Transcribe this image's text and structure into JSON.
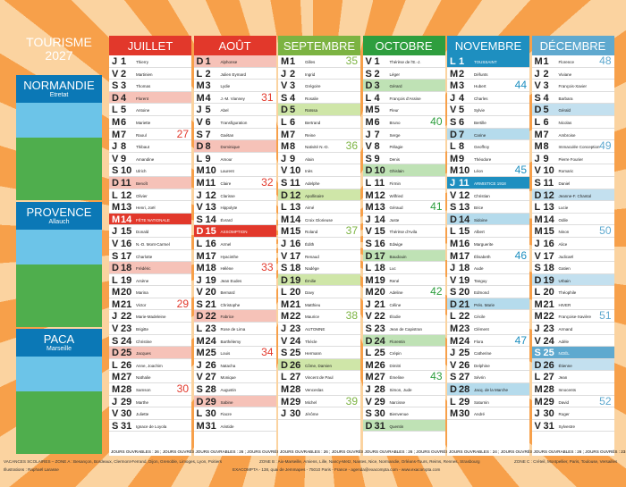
{
  "header": {
    "title": "TOURISME",
    "year": "2027"
  },
  "panels": [
    {
      "title": "NORMANDIE",
      "place": "Etretat"
    },
    {
      "title": "PROVENCE",
      "place": "Allauch"
    },
    {
      "title": "PACA",
      "place": "Marseille"
    }
  ],
  "months": [
    {
      "name": "JUILLET",
      "color": "#e2382b",
      "light": "#f6c2b8",
      "holidays": [
        14
      ],
      "days": [
        [
          "J",
          1,
          "Thierry"
        ],
        [
          "V",
          2,
          "Martinien"
        ],
        [
          "S",
          3,
          "Thomas"
        ],
        [
          "D",
          4,
          "Florent"
        ],
        [
          "L",
          5,
          "Antoine"
        ],
        [
          "M",
          6,
          "Mariette"
        ],
        [
          "M",
          7,
          "Raoul"
        ],
        [
          "J",
          8,
          "Thibaut"
        ],
        [
          "V",
          9,
          "Amandine"
        ],
        [
          "S",
          10,
          "Ulrich"
        ],
        [
          "D",
          11,
          "Benoît"
        ],
        [
          "L",
          12,
          "Olivier"
        ],
        [
          "M",
          13,
          "Henri, Joël"
        ],
        [
          "M",
          14,
          "FÊTE NATIONALE"
        ],
        [
          "J",
          15,
          "Donald"
        ],
        [
          "V",
          16,
          "N.-D. Mont-Carmel"
        ],
        [
          "S",
          17,
          "Charlotte"
        ],
        [
          "D",
          18,
          "Frédéric"
        ],
        [
          "L",
          19,
          "Arsène"
        ],
        [
          "M",
          20,
          "Marina"
        ],
        [
          "M",
          21,
          "Victor"
        ],
        [
          "J",
          22,
          "Marie-Madeleine"
        ],
        [
          "V",
          23,
          "Brigitte"
        ],
        [
          "S",
          24,
          "Christine"
        ],
        [
          "D",
          25,
          "Jacques"
        ],
        [
          "L",
          26,
          "Anne, Joachim"
        ],
        [
          "M",
          27,
          "Nathalie"
        ],
        [
          "M",
          28,
          "Samson"
        ],
        [
          "J",
          29,
          "Marthe"
        ],
        [
          "V",
          30,
          "Juliette"
        ],
        [
          "S",
          31,
          "Ignace de Loyola"
        ]
      ],
      "weeks": [
        {
          "day": 7,
          "num": 27
        },
        {
          "day": 14,
          "num": 28
        },
        {
          "day": 21,
          "num": 29
        },
        {
          "day": 28,
          "num": 30
        }
      ],
      "footer": "JOURS OUVRABLES : 26 ; JOURS OUVRÉS : 21"
    },
    {
      "name": "AOÛT",
      "color": "#e2382b",
      "light": "#f6c2b8",
      "holidays": [
        15
      ],
      "days": [
        [
          "D",
          1,
          "Alphonse"
        ],
        [
          "L",
          2,
          "Julien Eymard"
        ],
        [
          "M",
          3,
          "Lydie"
        ],
        [
          "M",
          4,
          "J.-M. Vianney"
        ],
        [
          "J",
          5,
          "Abel"
        ],
        [
          "V",
          6,
          "Transfiguration"
        ],
        [
          "S",
          7,
          "Gaétan"
        ],
        [
          "D",
          8,
          "Dominique"
        ],
        [
          "L",
          9,
          "Amour"
        ],
        [
          "M",
          10,
          "Laurent"
        ],
        [
          "M",
          11,
          "Claire"
        ],
        [
          "J",
          12,
          "Clarisse"
        ],
        [
          "V",
          13,
          "Hippolyte"
        ],
        [
          "S",
          14,
          "Évrard"
        ],
        [
          "D",
          15,
          "ASSOMPTION"
        ],
        [
          "L",
          16,
          "Armel"
        ],
        [
          "M",
          17,
          "Hyacinthe"
        ],
        [
          "M",
          18,
          "Hélène"
        ],
        [
          "J",
          19,
          "Jean Eudes"
        ],
        [
          "V",
          20,
          "Bernard"
        ],
        [
          "S",
          21,
          "Christophe"
        ],
        [
          "D",
          22,
          "Fabrice"
        ],
        [
          "L",
          23,
          "Rose de Lima"
        ],
        [
          "M",
          24,
          "Barthélemy"
        ],
        [
          "M",
          25,
          "Louis"
        ],
        [
          "J",
          26,
          "Natacha"
        ],
        [
          "V",
          27,
          "Monique"
        ],
        [
          "S",
          28,
          "Augustin"
        ],
        [
          "D",
          29,
          "Sabine"
        ],
        [
          "L",
          30,
          "Fiacre"
        ],
        [
          "M",
          31,
          "Aristide"
        ]
      ],
      "weeks": [
        {
          "day": 4,
          "num": 31
        },
        {
          "day": 11,
          "num": 32
        },
        {
          "day": 18,
          "num": 33
        },
        {
          "day": 25,
          "num": 34
        }
      ],
      "footer": "JOURS OUVRABLES : 26 ; JOURS OUVRÉS : 22"
    },
    {
      "name": "SEPTEMBRE",
      "color": "#7cb342",
      "light": "#cfe6a8",
      "holidays": [],
      "days": [
        [
          "M",
          1,
          "Gilles"
        ],
        [
          "J",
          2,
          "Ingrid"
        ],
        [
          "V",
          3,
          "Grégoire"
        ],
        [
          "S",
          4,
          "Rosalie"
        ],
        [
          "D",
          5,
          "Raïssa"
        ],
        [
          "L",
          6,
          "Bertrand"
        ],
        [
          "M",
          7,
          "Reine"
        ],
        [
          "M",
          8,
          "Nativité N.-D."
        ],
        [
          "J",
          9,
          "Alain"
        ],
        [
          "V",
          10,
          "Inès"
        ],
        [
          "S",
          11,
          "Adelphe"
        ],
        [
          "D",
          12,
          "Apollinaire"
        ],
        [
          "L",
          13,
          "Aimé"
        ],
        [
          "M",
          14,
          "Croix Glorieuse"
        ],
        [
          "M",
          15,
          "Roland"
        ],
        [
          "J",
          16,
          "Édith"
        ],
        [
          "V",
          17,
          "Renaud"
        ],
        [
          "S",
          18,
          "Nadège"
        ],
        [
          "D",
          19,
          "Émilie"
        ],
        [
          "L",
          20,
          "Davy"
        ],
        [
          "M",
          21,
          "Matthieu"
        ],
        [
          "M",
          22,
          "Maurice"
        ],
        [
          "J",
          23,
          "AUTOMNE"
        ],
        [
          "V",
          24,
          "Thècle"
        ],
        [
          "S",
          25,
          "Hermann"
        ],
        [
          "D",
          26,
          "Côme, Damien"
        ],
        [
          "L",
          27,
          "Vincent de Paul"
        ],
        [
          "M",
          28,
          "Venceslas"
        ],
        [
          "M",
          29,
          "Michel"
        ],
        [
          "J",
          30,
          "Jérôme"
        ]
      ],
      "weeks": [
        {
          "day": 1,
          "num": 35
        },
        {
          "day": 8,
          "num": 36
        },
        {
          "day": 15,
          "num": 37
        },
        {
          "day": 22,
          "num": 38
        },
        {
          "day": 29,
          "num": 39
        }
      ],
      "footer": "JOURS OUVRABLES : 26 ; JOURS OUVRÉS : 22"
    },
    {
      "name": "OCTOBRE",
      "color": "#2e9e3e",
      "light": "#bfe2b5",
      "holidays": [],
      "days": [
        [
          "V",
          1,
          "Thérèse de l'E.-J."
        ],
        [
          "S",
          2,
          "Léger"
        ],
        [
          "D",
          3,
          "Gérard"
        ],
        [
          "L",
          4,
          "François d'Assise"
        ],
        [
          "M",
          5,
          "Fleur"
        ],
        [
          "M",
          6,
          "Bruno"
        ],
        [
          "J",
          7,
          "Serge"
        ],
        [
          "V",
          8,
          "Pélagie"
        ],
        [
          "S",
          9,
          "Denis"
        ],
        [
          "D",
          10,
          "Ghislain"
        ],
        [
          "L",
          11,
          "Firmin"
        ],
        [
          "M",
          12,
          "Wilfried"
        ],
        [
          "M",
          13,
          "Géraud"
        ],
        [
          "J",
          14,
          "Juste"
        ],
        [
          "V",
          15,
          "Thérèse d'Avila"
        ],
        [
          "S",
          16,
          "Edwige"
        ],
        [
          "D",
          17,
          "Baudouin"
        ],
        [
          "L",
          18,
          "Luc"
        ],
        [
          "M",
          19,
          "René"
        ],
        [
          "M",
          20,
          "Adeline"
        ],
        [
          "J",
          21,
          "Céline"
        ],
        [
          "V",
          22,
          "Élodie"
        ],
        [
          "S",
          23,
          "Jean de Capistran"
        ],
        [
          "D",
          24,
          "Florentin"
        ],
        [
          "L",
          25,
          "Crépin"
        ],
        [
          "M",
          26,
          "Dimitri"
        ],
        [
          "M",
          27,
          "Émeline"
        ],
        [
          "J",
          28,
          "Simon, Jude"
        ],
        [
          "V",
          29,
          "Narcisse"
        ],
        [
          "S",
          30,
          "Bienvenue"
        ],
        [
          "D",
          31,
          "Quentin"
        ]
      ],
      "weeks": [
        {
          "day": 6,
          "num": 40
        },
        {
          "day": 13,
          "num": 41
        },
        {
          "day": 20,
          "num": 42
        },
        {
          "day": 27,
          "num": 43
        }
      ],
      "footer": "JOURS OUVRABLES : 26 ; JOURS OUVRÉS : 21"
    },
    {
      "name": "NOVEMBRE",
      "color": "#1e8fc0",
      "light": "#b5dbec",
      "holidays": [
        1,
        11
      ],
      "days": [
        [
          "L",
          1,
          "TOUSSAINT"
        ],
        [
          "M",
          2,
          "Défunts"
        ],
        [
          "M",
          3,
          "Hubert"
        ],
        [
          "J",
          4,
          "Charles"
        ],
        [
          "V",
          5,
          "Sylvie"
        ],
        [
          "S",
          6,
          "Bertille"
        ],
        [
          "D",
          7,
          "Carine"
        ],
        [
          "L",
          8,
          "Geoffroy"
        ],
        [
          "M",
          9,
          "Théodore"
        ],
        [
          "M",
          10,
          "Léon"
        ],
        [
          "J",
          11,
          "ARMISTICE 1918"
        ],
        [
          "V",
          12,
          "Christian"
        ],
        [
          "S",
          13,
          "Brice"
        ],
        [
          "D",
          14,
          "Sidoine"
        ],
        [
          "L",
          15,
          "Albert"
        ],
        [
          "M",
          16,
          "Marguerite"
        ],
        [
          "M",
          17,
          "Élisabeth"
        ],
        [
          "J",
          18,
          "Aude"
        ],
        [
          "V",
          19,
          "Tanguy"
        ],
        [
          "S",
          20,
          "Edmond"
        ],
        [
          "D",
          21,
          "Prés. Marie"
        ],
        [
          "L",
          22,
          "Cécile"
        ],
        [
          "M",
          23,
          "Clément"
        ],
        [
          "M",
          24,
          "Flora"
        ],
        [
          "J",
          25,
          "Catherine"
        ],
        [
          "V",
          26,
          "Delphine"
        ],
        [
          "S",
          27,
          "Sévrin"
        ],
        [
          "D",
          28,
          "Jacq. de la Marche"
        ],
        [
          "L",
          29,
          "Saturnin"
        ],
        [
          "M",
          30,
          "André"
        ]
      ],
      "weeks": [
        {
          "day": 3,
          "num": 44
        },
        {
          "day": 10,
          "num": 45
        },
        {
          "day": 17,
          "num": 46
        },
        {
          "day": 24,
          "num": 47
        }
      ],
      "footer": "JOURS OUVRABLES : 24 ; JOURS OUVRÉS : 20"
    },
    {
      "name": "DÉCEMBRE",
      "color": "#5fa9cf",
      "light": "#c3e0ef",
      "holidays": [
        25
      ],
      "days": [
        [
          "M",
          1,
          "Florence"
        ],
        [
          "J",
          2,
          "Viviane"
        ],
        [
          "V",
          3,
          "François-Xavier"
        ],
        [
          "S",
          4,
          "Barbara"
        ],
        [
          "D",
          5,
          "Gérald"
        ],
        [
          "L",
          6,
          "Nicolas"
        ],
        [
          "M",
          7,
          "Ambroise"
        ],
        [
          "M",
          8,
          "Immaculée Conception"
        ],
        [
          "J",
          9,
          "Pierre Fourier"
        ],
        [
          "V",
          10,
          "Romaric"
        ],
        [
          "S",
          11,
          "Daniel"
        ],
        [
          "D",
          12,
          "Jeanne-F. Chantal"
        ],
        [
          "L",
          13,
          "Lucie"
        ],
        [
          "M",
          14,
          "Odile"
        ],
        [
          "M",
          15,
          "Ninon"
        ],
        [
          "J",
          16,
          "Alice"
        ],
        [
          "V",
          17,
          "Judicaël"
        ],
        [
          "S",
          18,
          "Gatien"
        ],
        [
          "D",
          19,
          "Urbain"
        ],
        [
          "L",
          20,
          "Théophile"
        ],
        [
          "M",
          21,
          "HIVER"
        ],
        [
          "M",
          22,
          "Françoise-Xavière"
        ],
        [
          "J",
          23,
          "Armand"
        ],
        [
          "V",
          24,
          "Adèle"
        ],
        [
          "S",
          25,
          "NOËL"
        ],
        [
          "D",
          26,
          "Étienne"
        ],
        [
          "L",
          27,
          "Jean"
        ],
        [
          "M",
          28,
          "Innocents"
        ],
        [
          "M",
          29,
          "David"
        ],
        [
          "J",
          30,
          "Roger"
        ],
        [
          "V",
          31,
          "Sylvestre"
        ]
      ],
      "weeks": [
        {
          "day": 1,
          "num": 48
        },
        {
          "day": 8,
          "num": 49
        },
        {
          "day": 15,
          "num": 50
        },
        {
          "day": 22,
          "num": 51
        },
        {
          "day": 29,
          "num": 52
        }
      ],
      "footer": "JOURS OUVRABLES : 26 ; JOURS OUVRÉS : 23"
    }
  ],
  "bottom": {
    "zone_a": "VACANCES SCOLAIRES – ZONE A : Besançon, Bordeaux, Clermont-Ferrand, Dijon, Grenoble, Limoges, Lyon, Poitiers",
    "credit": "Illustrations : Raphaël Larasse",
    "zone_b": "ZONE B : Aix-Marseille, Amiens, Lille, Nancy-Metz, Nantes, Nice, Normandie, Orléans-Tours, Reims, Rennes, Strasbourg",
    "publisher": "EXACOMPTA - 138, quai de Jemmapes - 75010 Paris - France - agenda@exacompta.com - www.exacompta.com",
    "zone_c": "ZONE C : Créteil, Montpellier, Paris, Toulouse, Versailles"
  }
}
